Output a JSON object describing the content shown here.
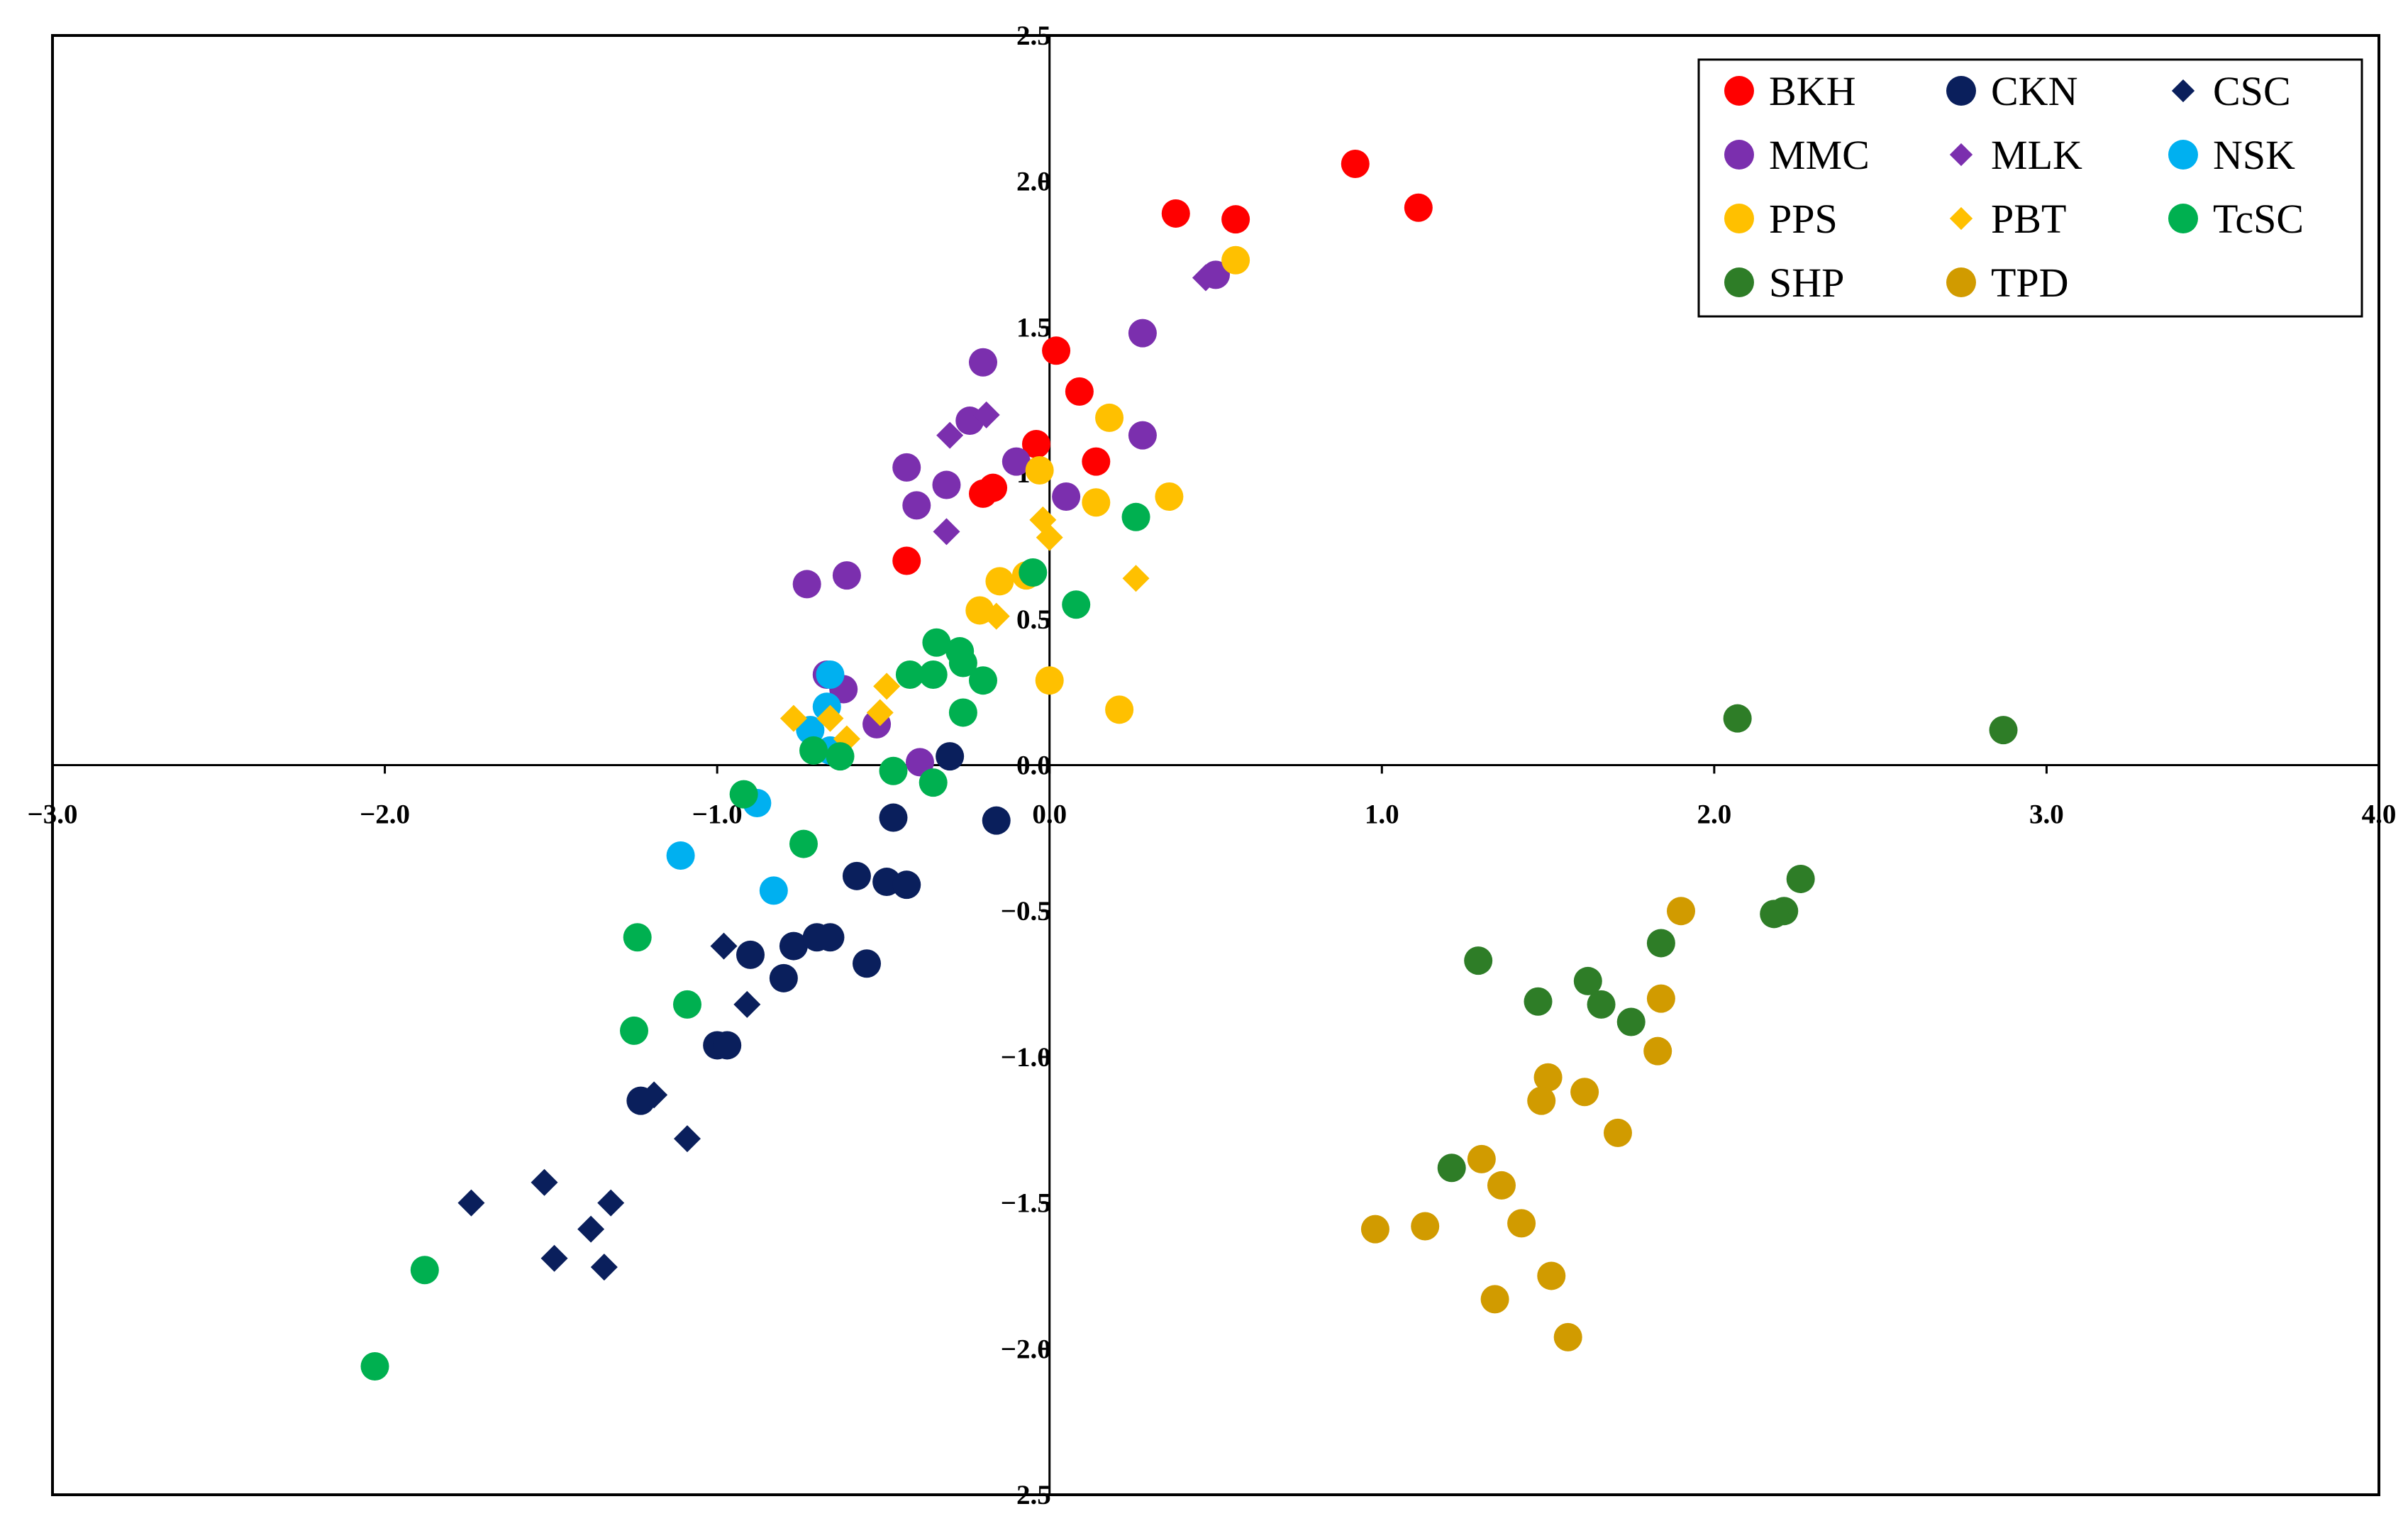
{
  "chart_data": {
    "type": "scatter",
    "title": "",
    "xlabel": "",
    "ylabel": "",
    "xlim": [
      -3.0,
      4.0
    ],
    "ylim": [
      -2.5,
      2.5
    ],
    "x_ticks": [
      -3.0,
      -2.0,
      -1.0,
      0.0,
      1.0,
      2.0,
      3.0,
      4.0
    ],
    "y_ticks": [
      -2.5,
      -2.0,
      -1.5,
      -1.0,
      -0.5,
      0.0,
      0.5,
      1.0,
      1.5,
      2.0,
      2.5
    ],
    "x_tick_labels": [
      "−3.0",
      "−2.0",
      "−1.0",
      "0.0",
      "1.0",
      "2.0",
      "3.0",
      "4.0"
    ],
    "y_tick_labels": [
      "−2.5",
      "−2.0",
      "−1.5",
      "−1.0",
      "−0.5",
      "0.0",
      "0.5",
      "1.0",
      "1.5",
      "2.0",
      "2.5"
    ],
    "legend_position": "top-right",
    "series": [
      {
        "name": "BKH",
        "marker": "circle",
        "color": "#ff0000",
        "points": [
          [
            0.92,
            2.06
          ],
          [
            1.11,
            1.91
          ],
          [
            0.38,
            1.89
          ],
          [
            0.56,
            1.87
          ],
          [
            0.02,
            1.42
          ],
          [
            0.09,
            1.28
          ],
          [
            0.14,
            1.04
          ],
          [
            -0.04,
            1.1
          ],
          [
            -0.17,
            0.95
          ],
          [
            -0.2,
            0.93
          ],
          [
            -0.43,
            0.7
          ]
        ]
      },
      {
        "name": "CKN",
        "marker": "circle",
        "color": "#0a1f5c",
        "points": [
          [
            -0.3,
            0.03
          ],
          [
            -0.47,
            -0.18
          ],
          [
            -0.16,
            -0.19
          ],
          [
            -0.58,
            -0.38
          ],
          [
            -0.49,
            -0.4
          ],
          [
            -0.43,
            -0.41
          ],
          [
            -0.9,
            -0.65
          ],
          [
            -0.77,
            -0.62
          ],
          [
            -0.7,
            -0.59
          ],
          [
            -0.66,
            -0.59
          ],
          [
            -0.8,
            -0.73
          ],
          [
            -0.55,
            -0.68
          ],
          [
            -1.0,
            -0.96
          ],
          [
            -0.97,
            -0.96
          ],
          [
            -1.23,
            -1.15
          ]
        ]
      },
      {
        "name": "CSC",
        "marker": "diamond",
        "color": "#0a1f5c",
        "points": [
          [
            -0.98,
            -0.62
          ],
          [
            -0.91,
            -0.82
          ],
          [
            -1.19,
            -1.13
          ],
          [
            -1.09,
            -1.28
          ],
          [
            -1.52,
            -1.43
          ],
          [
            -1.74,
            -1.5
          ],
          [
            -1.32,
            -1.5
          ],
          [
            -1.38,
            -1.59
          ],
          [
            -1.49,
            -1.69
          ],
          [
            -1.34,
            -1.72
          ]
        ]
      },
      {
        "name": "MMC",
        "marker": "circle",
        "color": "#7b2fae",
        "points": [
          [
            -0.2,
            1.38
          ],
          [
            0.28,
            1.48
          ],
          [
            0.5,
            1.68
          ],
          [
            -0.24,
            1.18
          ],
          [
            0.28,
            1.13
          ],
          [
            -0.1,
            1.04
          ],
          [
            -0.43,
            1.02
          ],
          [
            -0.31,
            0.96
          ],
          [
            -0.4,
            0.89
          ],
          [
            0.05,
            0.92
          ],
          [
            -0.61,
            0.65
          ],
          [
            -0.73,
            0.62
          ],
          [
            -0.67,
            0.31
          ],
          [
            -0.62,
            0.26
          ],
          [
            -0.52,
            0.14
          ],
          [
            -0.39,
            0.01
          ]
        ]
      },
      {
        "name": "MLK",
        "marker": "diamond",
        "color": "#7b2fae",
        "points": [
          [
            -0.19,
            1.2
          ],
          [
            -0.3,
            1.13
          ],
          [
            -0.31,
            0.8
          ],
          [
            0.47,
            1.67
          ]
        ]
      },
      {
        "name": "NSK",
        "marker": "circle",
        "color": "#00b0f0",
        "points": [
          [
            -0.66,
            0.31
          ],
          [
            -0.67,
            0.2
          ],
          [
            -0.72,
            0.12
          ],
          [
            -0.66,
            0.05
          ],
          [
            -0.88,
            -0.13
          ],
          [
            -1.11,
            -0.31
          ],
          [
            -0.83,
            -0.43
          ]
        ]
      },
      {
        "name": "PPS",
        "marker": "circle",
        "color": "#ffc000",
        "points": [
          [
            0.56,
            1.73
          ],
          [
            0.18,
            1.19
          ],
          [
            -0.03,
            1.01
          ],
          [
            0.14,
            0.9
          ],
          [
            0.36,
            0.92
          ],
          [
            -0.07,
            0.65
          ],
          [
            -0.15,
            0.63
          ],
          [
            -0.21,
            0.53
          ],
          [
            0.0,
            0.29
          ],
          [
            0.21,
            0.19
          ]
        ]
      },
      {
        "name": "PBT",
        "marker": "diamond",
        "color": "#ffc000",
        "points": [
          [
            -0.02,
            0.84
          ],
          [
            0.0,
            0.78
          ],
          [
            0.26,
            0.64
          ],
          [
            -0.16,
            0.51
          ],
          [
            -0.49,
            0.27
          ],
          [
            -0.51,
            0.18
          ],
          [
            -0.77,
            0.16
          ],
          [
            -0.66,
            0.16
          ],
          [
            -0.61,
            0.09
          ]
        ]
      },
      {
        "name": "TcSC",
        "marker": "circle",
        "color": "#00b050",
        "points": [
          [
            0.26,
            0.85
          ],
          [
            -0.05,
            0.66
          ],
          [
            0.08,
            0.55
          ],
          [
            -0.34,
            0.42
          ],
          [
            -0.27,
            0.39
          ],
          [
            -0.26,
            0.35
          ],
          [
            -0.42,
            0.31
          ],
          [
            -0.35,
            0.31
          ],
          [
            -0.2,
            0.29
          ],
          [
            -0.26,
            0.18
          ],
          [
            -0.71,
            0.05
          ],
          [
            -0.63,
            0.03
          ],
          [
            -0.47,
            -0.02
          ],
          [
            -0.35,
            -0.06
          ],
          [
            -0.92,
            -0.1
          ],
          [
            -0.74,
            -0.27
          ],
          [
            -1.24,
            -0.59
          ],
          [
            -1.09,
            -0.82
          ],
          [
            -1.25,
            -0.91
          ],
          [
            -1.88,
            -1.73
          ],
          [
            -2.03,
            -2.06
          ]
        ]
      },
      {
        "name": "SHP",
        "marker": "circle",
        "color": "#2e7d27",
        "points": [
          [
            2.07,
            0.16
          ],
          [
            2.87,
            0.12
          ],
          [
            2.26,
            -0.39
          ],
          [
            2.21,
            -0.5
          ],
          [
            2.18,
            -0.51
          ],
          [
            1.84,
            -0.61
          ],
          [
            1.29,
            -0.67
          ],
          [
            1.62,
            -0.74
          ],
          [
            1.66,
            -0.82
          ],
          [
            1.47,
            -0.81
          ],
          [
            1.75,
            -0.88
          ],
          [
            1.21,
            -1.38
          ]
        ]
      },
      {
        "name": "TPD",
        "marker": "circle",
        "color": "#d19b00",
        "points": [
          [
            1.9,
            -0.5
          ],
          [
            1.84,
            -0.8
          ],
          [
            1.83,
            -0.98
          ],
          [
            1.5,
            -1.07
          ],
          [
            1.48,
            -1.15
          ],
          [
            1.61,
            -1.12
          ],
          [
            1.71,
            -1.26
          ],
          [
            1.3,
            -1.35
          ],
          [
            1.36,
            -1.44
          ],
          [
            1.42,
            -1.57
          ],
          [
            0.98,
            -1.59
          ],
          [
            1.13,
            -1.58
          ],
          [
            1.51,
            -1.75
          ],
          [
            1.34,
            -1.83
          ],
          [
            1.56,
            -1.96
          ]
        ]
      }
    ]
  }
}
